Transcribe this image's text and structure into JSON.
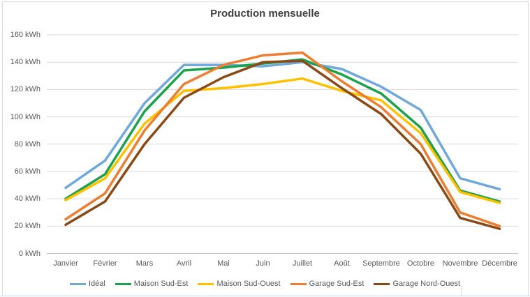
{
  "chart_data": {
    "type": "line",
    "title": "Production mensuelle",
    "unit": "kWh",
    "xlabel": "",
    "ylabel": "",
    "ylim": [
      0,
      160
    ],
    "ytick_step": 20,
    "ytick_labels": [
      "0 kWh",
      "20 kWh",
      "40 kWh",
      "60 kWh",
      "80 kWh",
      "100 kWh",
      "120 kWh",
      "140 kWh",
      "160 kWh"
    ],
    "grid": "horizontal",
    "legend_position": "bottom",
    "categories": [
      "Janvier",
      "Février",
      "Mars",
      "Avril",
      "Mai",
      "Juin",
      "Juillet",
      "Août",
      "Septembre",
      "Octobre",
      "Novembre",
      "Décembre"
    ],
    "series": [
      {
        "name": "Idéal",
        "color": "#6FA8DC",
        "values": [
          48,
          68,
          110,
          138,
          138,
          137,
          140,
          135,
          122,
          105,
          55,
          47
        ]
      },
      {
        "name": "Maison Sud-Est",
        "color": "#1AA24C",
        "values": [
          40,
          58,
          104,
          134,
          136,
          139,
          142,
          131,
          117,
          92,
          46,
          38
        ]
      },
      {
        "name": "Maison Sud-Ouest",
        "color": "#FFC000",
        "values": [
          39,
          55,
          95,
          119,
          121,
          124,
          128,
          119,
          112,
          88,
          45,
          37
        ]
      },
      {
        "name": "Garage Sud-Est",
        "color": "#ED7D31",
        "values": [
          25,
          44,
          90,
          124,
          138,
          145,
          147,
          126,
          107,
          80,
          30,
          20
        ]
      },
      {
        "name": "Garage Nord-Ouest",
        "color": "#8A4A15",
        "values": [
          21,
          38,
          80,
          114,
          129,
          140,
          141,
          121,
          102,
          73,
          26,
          18
        ]
      }
    ],
    "colors": {
      "gridline": "#D9D9D9",
      "axis_line": "#BFBFBF",
      "axis_text": "#595959",
      "title_text": "#3F3F3F"
    }
  }
}
